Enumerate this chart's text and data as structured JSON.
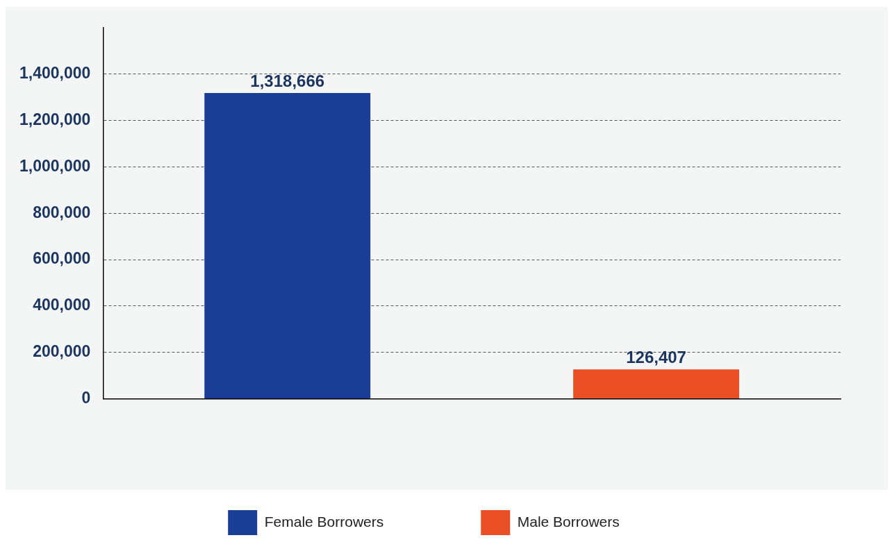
{
  "chart_data": {
    "type": "bar",
    "categories": [
      null,
      null
    ],
    "series": [
      {
        "name": "Female Borrowers",
        "color": "#1a3d96",
        "values": [
          1318666,
          null
        ]
      },
      {
        "name": "Male Borrowers",
        "color": "#e94e24",
        "values": [
          null,
          126407
        ]
      }
    ],
    "ylim": [
      0,
      1600000
    ],
    "yticks": [
      {
        "value": 0,
        "label": "0"
      },
      {
        "value": 200000,
        "label": "200,000"
      },
      {
        "value": 400000,
        "label": "400,000"
      },
      {
        "value": 600000,
        "label": "600,000"
      },
      {
        "value": 800000,
        "label": "800,000"
      },
      {
        "value": 1000000,
        "label": "1,000,000"
      },
      {
        "value": 1200000,
        "label": "1,200,000"
      },
      {
        "value": 1400000,
        "label": "1,400,000"
      }
    ],
    "value_labels": [
      "1,318,666",
      "126,407"
    ],
    "grid": "y",
    "legend": "bottom"
  }
}
